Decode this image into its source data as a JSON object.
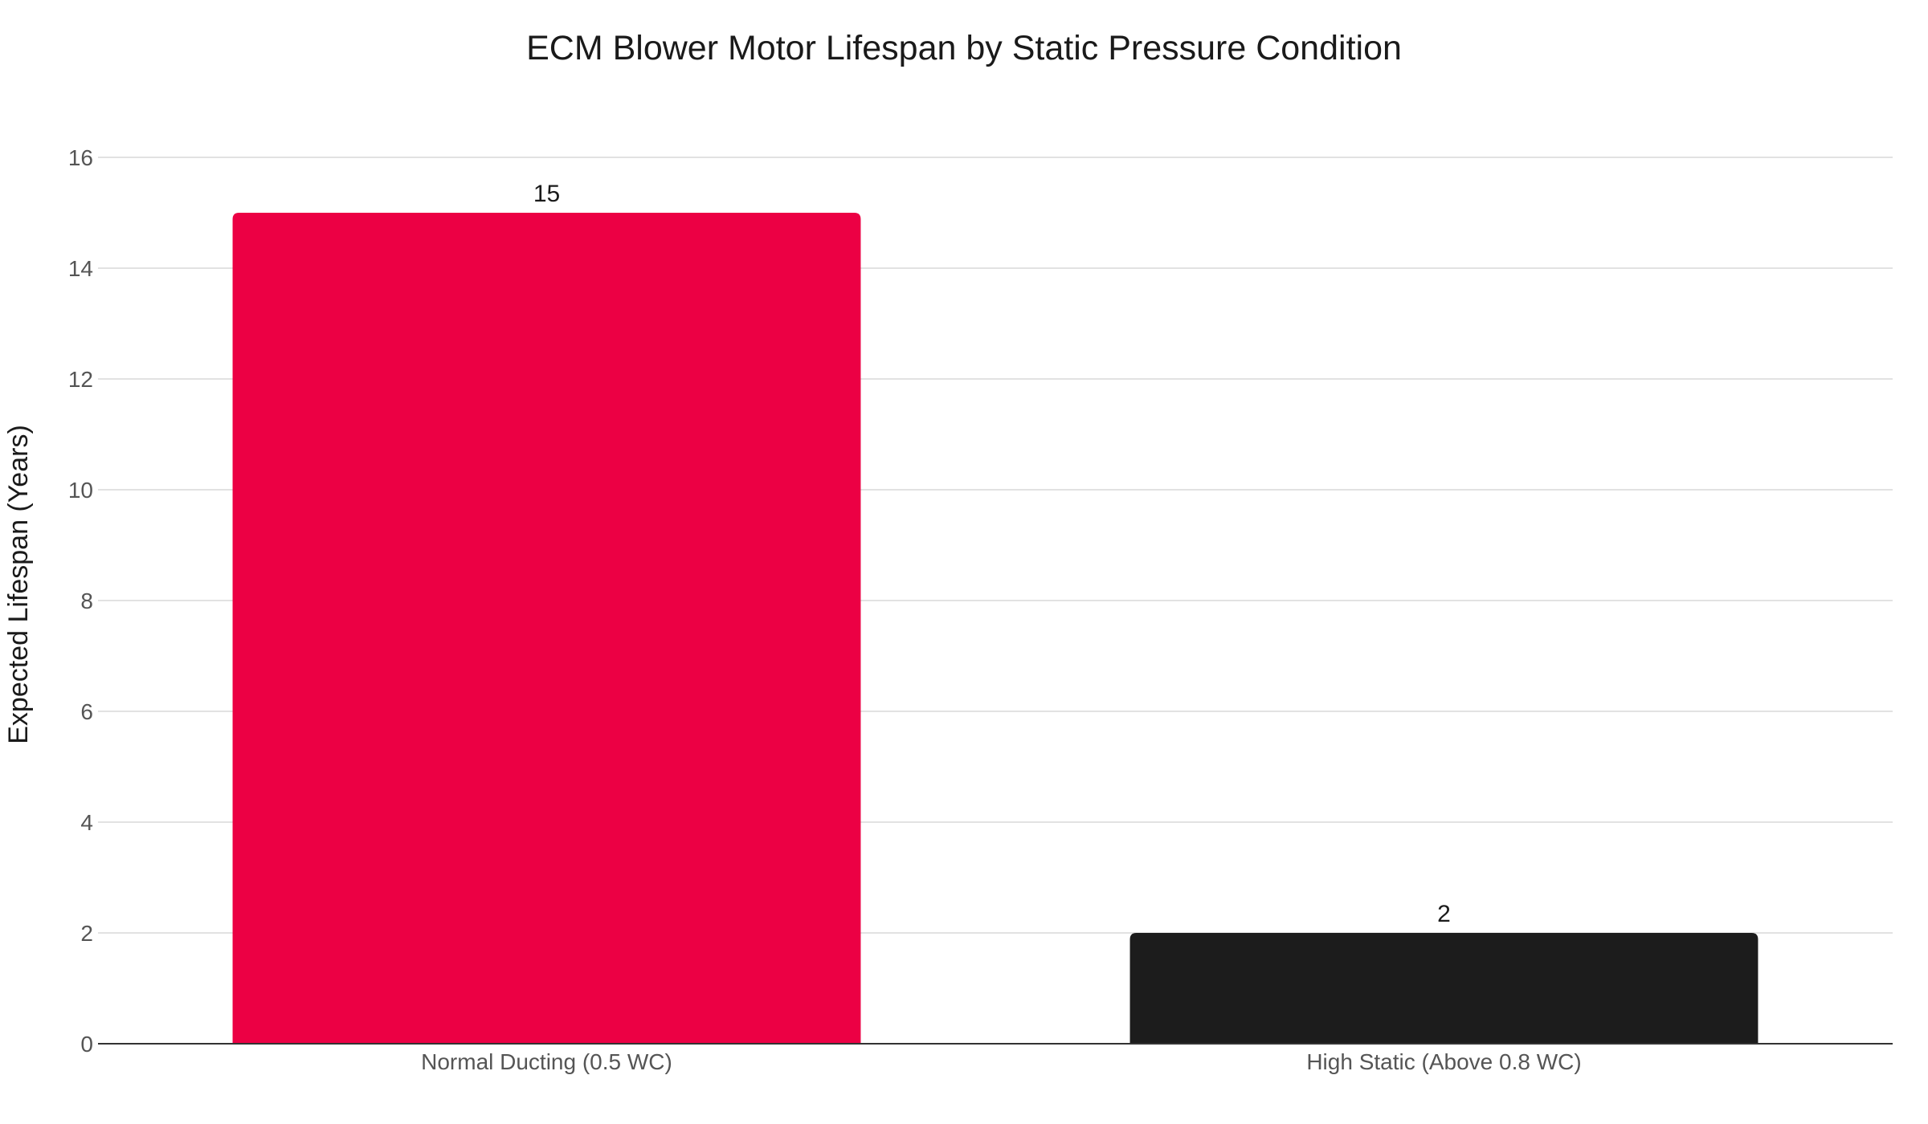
{
  "chart_data": {
    "type": "bar",
    "title": "ECM Blower Motor Lifespan by Static Pressure Condition",
    "xlabel": "",
    "ylabel": "Expected Lifespan (Years)",
    "categories": [
      "Normal Ducting (0.5 WC)",
      "High Static (Above 0.8 WC)"
    ],
    "values": [
      15,
      2
    ],
    "data_labels": [
      "15",
      "2"
    ],
    "colors": [
      "#ec0044",
      "#1c1c1c"
    ],
    "ylim": [
      0,
      16
    ],
    "yticks": [
      0,
      2,
      4,
      6,
      8,
      10,
      12,
      14,
      16
    ],
    "grid": true,
    "legend": "none"
  }
}
